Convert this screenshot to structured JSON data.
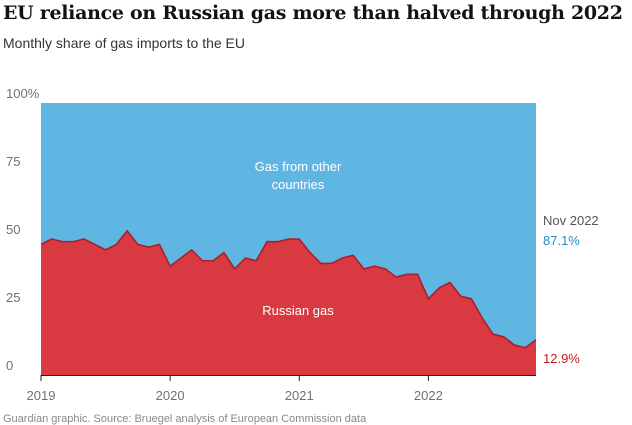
{
  "header": {
    "title": "EU reliance on Russian gas more than halved through 2022",
    "subtitle": "Monthly share of gas imports to the EU"
  },
  "chart_data": {
    "type": "area",
    "title": "EU reliance on Russian gas more than halved through 2022",
    "subtitle": "Monthly share of gas imports to the EU",
    "xlabel": "",
    "ylabel": "",
    "ylim": [
      0,
      100
    ],
    "y_ticks": [
      "100%",
      "75",
      "50",
      "25",
      "0"
    ],
    "x_ticks": [
      "2019",
      "2020",
      "2021",
      "2022"
    ],
    "x": [
      "2019-01",
      "2019-02",
      "2019-03",
      "2019-04",
      "2019-05",
      "2019-06",
      "2019-07",
      "2019-08",
      "2019-09",
      "2019-10",
      "2019-11",
      "2019-12",
      "2020-01",
      "2020-02",
      "2020-03",
      "2020-04",
      "2020-05",
      "2020-06",
      "2020-07",
      "2020-08",
      "2020-09",
      "2020-10",
      "2020-11",
      "2020-12",
      "2021-01",
      "2021-02",
      "2021-03",
      "2021-04",
      "2021-05",
      "2021-06",
      "2021-07",
      "2021-08",
      "2021-09",
      "2021-10",
      "2021-11",
      "2021-12",
      "2022-01",
      "2022-02",
      "2022-03",
      "2022-04",
      "2022-05",
      "2022-06",
      "2022-07",
      "2022-08",
      "2022-09",
      "2022-10",
      "2022-11"
    ],
    "series": [
      {
        "name": "Russian gas",
        "color": "#d93a41",
        "values": [
          48,
          50,
          49,
          49,
          50,
          48,
          46,
          48,
          53,
          48,
          47,
          48,
          40,
          43,
          46,
          42,
          42,
          45,
          39,
          43,
          42,
          49,
          49,
          50,
          50,
          45,
          41,
          41,
          43,
          44,
          39,
          40,
          39,
          36,
          37,
          37,
          28,
          32,
          34,
          29,
          28,
          21,
          15,
          14,
          11,
          10,
          12.9
        ]
      },
      {
        "name": "Gas from other countries",
        "color": "#60b6e3",
        "values": [
          52,
          50,
          51,
          51,
          50,
          52,
          54,
          52,
          47,
          52,
          53,
          52,
          60,
          57,
          54,
          58,
          58,
          55,
          61,
          57,
          58,
          51,
          51,
          50,
          50,
          55,
          59,
          59,
          57,
          56,
          61,
          60,
          61,
          64,
          63,
          63,
          72,
          68,
          66,
          71,
          72,
          79,
          85,
          86,
          89,
          90,
          87.1
        ]
      }
    ],
    "area_labels": {
      "other_line1": "Gas from other",
      "other_line2": "countries",
      "russian": "Russian gas"
    },
    "annotation": {
      "date": "Nov 2022",
      "other_value": "87.1%",
      "russian_value": "12.9%"
    },
    "grid": false
  },
  "source": "Guardian graphic. Source: Bruegel analysis of European Commission data"
}
